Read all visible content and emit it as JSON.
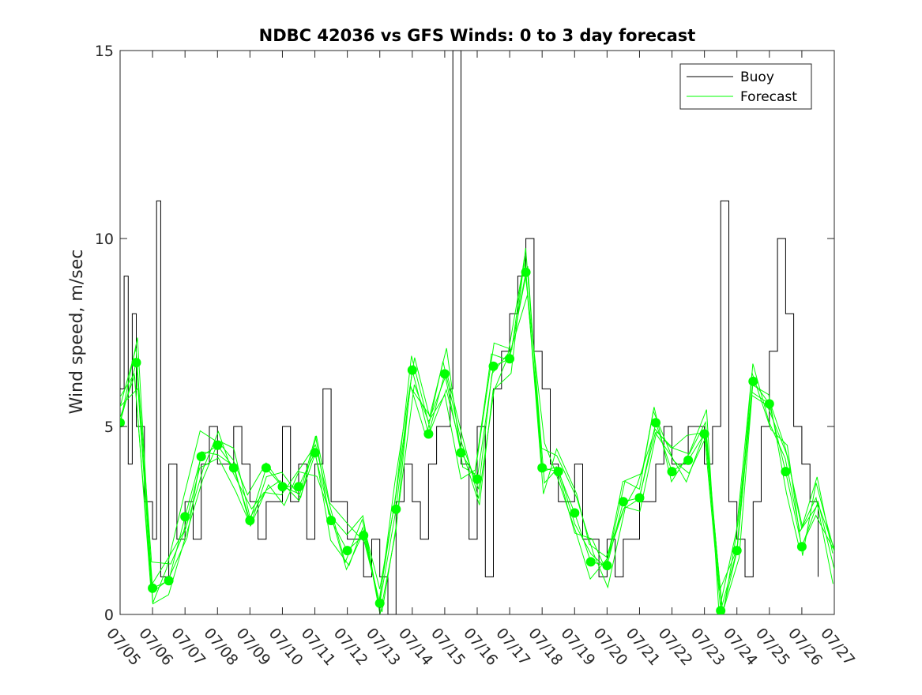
{
  "chart_data": {
    "type": "line",
    "title": "NDBC 42036 vs GFS Winds: 0 to 3 day forecast",
    "xlabel": "",
    "ylabel": "Wind speed, m/sec",
    "xlim": [
      "07/05",
      "07/27"
    ],
    "ylim": [
      0,
      15
    ],
    "x_ticks": [
      "07/05",
      "07/06",
      "07/07",
      "07/08",
      "07/09",
      "07/10",
      "07/11",
      "07/12",
      "07/13",
      "07/14",
      "07/15",
      "07/16",
      "07/17",
      "07/18",
      "07/19",
      "07/20",
      "07/21",
      "07/22",
      "07/23",
      "07/24",
      "07/25",
      "07/26",
      "07/27"
    ],
    "y_ticks": [
      0,
      5,
      10,
      15
    ],
    "grid": false,
    "legend_position": "top-right",
    "colors": {
      "buoy": "#000000",
      "forecast": "#00ff00"
    },
    "series": [
      {
        "name": "Buoy",
        "style": "line",
        "x": [
          "07/05 00:00",
          "07/05 03:00",
          "07/05 06:00",
          "07/05 09:00",
          "07/05 12:00",
          "07/05 18:00",
          "07/06 00:00",
          "07/06 03:00",
          "07/06 06:00",
          "07/06 12:00",
          "07/06 18:00",
          "07/07 00:00",
          "07/07 06:00",
          "07/07 12:00",
          "07/07 18:00",
          "07/08 00:00",
          "07/08 06:00",
          "07/08 12:00",
          "07/08 18:00",
          "07/09 00:00",
          "07/09 06:00",
          "07/09 12:00",
          "07/09 18:00",
          "07/10 00:00",
          "07/10 06:00",
          "07/10 12:00",
          "07/10 18:00",
          "07/11 00:00",
          "07/11 06:00",
          "07/11 12:00",
          "07/11 18:00",
          "07/12 00:00",
          "07/12 06:00",
          "07/12 12:00",
          "07/12 18:00",
          "07/13 00:00",
          "07/13 06:00",
          "07/13 12:00",
          "07/13 18:00",
          "07/14 00:00",
          "07/14 06:00",
          "07/14 12:00",
          "07/14 18:00",
          "07/15 00:00",
          "07/15 04:00",
          "07/15 06:00",
          "07/15 12:00",
          "07/15 18:00",
          "07/16 00:00",
          "07/16 06:00",
          "07/16 12:00",
          "07/16 18:00",
          "07/17 00:00",
          "07/17 06:00",
          "07/17 12:00",
          "07/17 18:00",
          "07/18 00:00",
          "07/18 06:00",
          "07/18 12:00",
          "07/18 18:00",
          "07/19 00:00",
          "07/19 06:00",
          "07/19 12:00",
          "07/19 18:00",
          "07/20 00:00",
          "07/20 06:00",
          "07/20 12:00",
          "07/20 18:00",
          "07/21 00:00",
          "07/21 06:00",
          "07/21 12:00",
          "07/21 18:00",
          "07/22 00:00",
          "07/22 06:00",
          "07/22 12:00",
          "07/22 18:00",
          "07/23 00:00",
          "07/23 06:00",
          "07/23 12:00",
          "07/23 18:00",
          "07/24 00:00",
          "07/24 06:00",
          "07/24 12:00",
          "07/24 18:00",
          "07/25 00:00",
          "07/25 06:00",
          "07/25 12:00",
          "07/25 18:00",
          "07/26 00:00",
          "07/26 06:00",
          "07/26 12:00"
        ],
        "y": [
          6,
          9,
          4,
          8,
          5,
          3,
          2,
          11,
          1,
          4,
          2,
          3,
          2,
          4,
          5,
          4,
          4,
          5,
          4,
          3,
          2,
          3,
          3,
          5,
          3,
          4,
          2,
          4,
          6,
          3,
          3,
          2,
          2,
          1,
          2,
          1,
          0,
          3,
          4,
          3,
          2,
          4,
          5,
          5,
          6,
          15,
          4,
          2,
          5,
          1,
          6,
          7,
          8,
          9,
          10,
          7,
          6,
          4,
          3,
          3,
          4,
          2,
          2,
          1,
          2,
          1,
          2,
          2,
          3,
          3,
          4,
          5,
          4,
          4,
          5,
          5,
          4,
          5,
          11,
          3,
          2,
          1,
          3,
          5,
          7,
          10,
          8,
          5,
          4,
          3,
          1
        ]
      },
      {
        "name": "Forecast",
        "style": "line",
        "x": [
          "07/05 00:00",
          "07/05 12:00",
          "07/06 00:00",
          "07/06 12:00",
          "07/07 00:00",
          "07/07 12:00",
          "07/08 00:00",
          "07/08 12:00",
          "07/09 00:00",
          "07/09 12:00",
          "07/10 00:00",
          "07/10 12:00",
          "07/11 00:00",
          "07/11 12:00",
          "07/12 00:00",
          "07/12 12:00",
          "07/13 00:00",
          "07/13 12:00",
          "07/14 00:00",
          "07/14 12:00",
          "07/15 00:00",
          "07/15 12:00",
          "07/16 00:00",
          "07/16 12:00",
          "07/17 00:00",
          "07/17 12:00",
          "07/18 00:00",
          "07/18 12:00",
          "07/19 00:00",
          "07/19 12:00",
          "07/20 00:00",
          "07/20 12:00",
          "07/21 00:00",
          "07/21 12:00",
          "07/22 00:00",
          "07/22 12:00",
          "07/23 00:00",
          "07/23 12:00",
          "07/24 00:00",
          "07/24 12:00",
          "07/25 00:00",
          "07/25 12:00",
          "07/26 00:00",
          "07/26 12:00",
          "07/27 00:00"
        ],
        "y": [
          5.1,
          6.7,
          0.7,
          0.9,
          2.6,
          4.2,
          4.5,
          3.9,
          2.5,
          3.9,
          3.4,
          3.4,
          4.3,
          2.5,
          1.7,
          2.1,
          0.3,
          2.8,
          6.5,
          4.8,
          6.4,
          4.3,
          3.6,
          6.6,
          6.8,
          9.1,
          3.9,
          3.8,
          2.7,
          1.4,
          1.3,
          3.0,
          3.1,
          5.1,
          3.8,
          4.1,
          4.8,
          0.1,
          1.7,
          6.2,
          5.6,
          3.8,
          1.8,
          3.0,
          1.2
        ]
      },
      {
        "name": "",
        "style": "markers",
        "x": [
          "07/05 00:00",
          "07/05 12:00",
          "07/06 00:00",
          "07/06 12:00",
          "07/07 00:00",
          "07/07 12:00",
          "07/08 00:00",
          "07/08 12:00",
          "07/09 00:00",
          "07/09 12:00",
          "07/10 00:00",
          "07/10 12:00",
          "07/11 00:00",
          "07/11 12:00",
          "07/12 00:00",
          "07/12 12:00",
          "07/13 00:00",
          "07/13 12:00",
          "07/14 00:00",
          "07/14 12:00",
          "07/15 00:00",
          "07/15 12:00",
          "07/16 00:00",
          "07/16 12:00",
          "07/17 00:00",
          "07/17 12:00",
          "07/18 00:00",
          "07/18 12:00",
          "07/19 00:00",
          "07/19 12:00",
          "07/20 00:00",
          "07/20 12:00",
          "07/21 00:00",
          "07/21 12:00",
          "07/22 00:00",
          "07/22 12:00",
          "07/23 00:00",
          "07/23 12:00",
          "07/24 00:00",
          "07/24 12:00",
          "07/25 00:00",
          "07/25 12:00",
          "07/26 00:00"
        ],
        "y": [
          5.1,
          6.7,
          0.7,
          0.9,
          2.6,
          4.2,
          4.5,
          3.9,
          2.5,
          3.9,
          3.4,
          3.4,
          4.3,
          2.5,
          1.7,
          2.1,
          0.3,
          2.8,
          6.5,
          4.8,
          6.4,
          4.3,
          3.6,
          6.6,
          6.8,
          9.1,
          3.9,
          3.8,
          2.7,
          1.4,
          1.3,
          3.0,
          3.1,
          5.1,
          3.8,
          4.1,
          4.8,
          0.1,
          1.7,
          6.2,
          5.6,
          3.8,
          1.8
        ]
      }
    ]
  }
}
